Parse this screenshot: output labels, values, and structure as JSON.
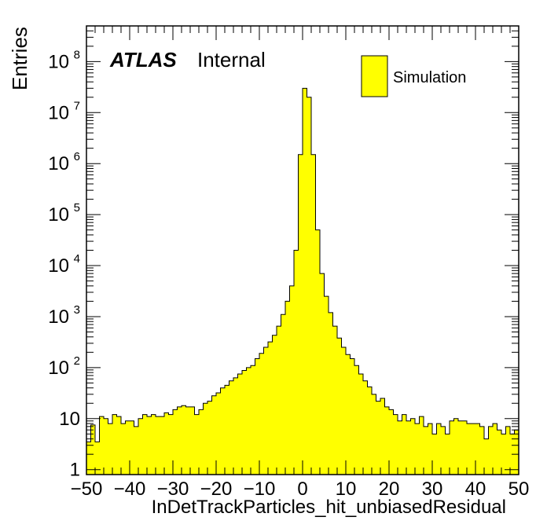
{
  "chart_data": {
    "type": "bar",
    "xlabel": "InDetTrackParticles_hit_unbiasedResidual",
    "ylabel": "Entries",
    "xlim": [
      -50,
      50
    ],
    "ylim": [
      0.8,
      500000000
    ],
    "log_y": true,
    "legend": {
      "placement": "top-right",
      "entries": [
        "Simulation"
      ]
    },
    "atlas_label": "ATLAS",
    "atlas_status": "Internal",
    "fill_color": "#ffff00",
    "x_tick_labels": [
      "−50",
      "−40",
      "−30",
      "−20",
      "−10",
      "0",
      "10",
      "20",
      "30",
      "40",
      "50"
    ],
    "x_tick_values": [
      -50,
      -40,
      -30,
      -20,
      -10,
      0,
      10,
      20,
      30,
      40,
      50
    ],
    "y_tick_labels": [
      {
        "value": 1,
        "base": "1",
        "exp": ""
      },
      {
        "value": 10,
        "base": "10",
        "exp": ""
      },
      {
        "value": 100,
        "base": "10",
        "exp": "2"
      },
      {
        "value": 1000,
        "base": "10",
        "exp": "3"
      },
      {
        "value": 10000,
        "base": "10",
        "exp": "4"
      },
      {
        "value": 100000,
        "base": "10",
        "exp": "5"
      },
      {
        "value": 1000000,
        "base": "10",
        "exp": "6"
      },
      {
        "value": 10000000,
        "base": "10",
        "exp": "7"
      },
      {
        "value": 100000000,
        "base": "10",
        "exp": "8"
      }
    ],
    "bin_edges_start": -50,
    "bin_width": 1,
    "values": [
      3.5,
      7.5,
      3.5,
      11,
      10,
      8,
      12,
      11,
      8,
      9,
      9,
      7,
      10,
      12,
      11,
      12,
      11,
      11,
      13,
      12,
      15,
      17,
      18,
      17,
      17,
      12,
      15,
      20,
      22,
      28,
      32,
      40,
      45,
      55,
      63,
      75,
      88,
      100,
      110,
      150,
      190,
      250,
      320,
      430,
      650,
      1100,
      2000,
      4000,
      20000,
      1500000,
      30000000,
      20000000,
      1500000,
      50000,
      7000,
      2500,
      1200,
      650,
      380,
      250,
      180,
      150,
      110,
      75,
      55,
      42,
      30,
      22,
      25,
      17,
      15,
      12,
      9,
      12,
      9,
      10,
      8,
      11,
      7,
      8,
      5,
      8,
      7,
      5,
      9,
      10,
      9,
      9,
      8,
      8,
      8,
      7,
      4,
      7,
      8,
      6,
      5,
      7,
      5,
      6
    ]
  }
}
